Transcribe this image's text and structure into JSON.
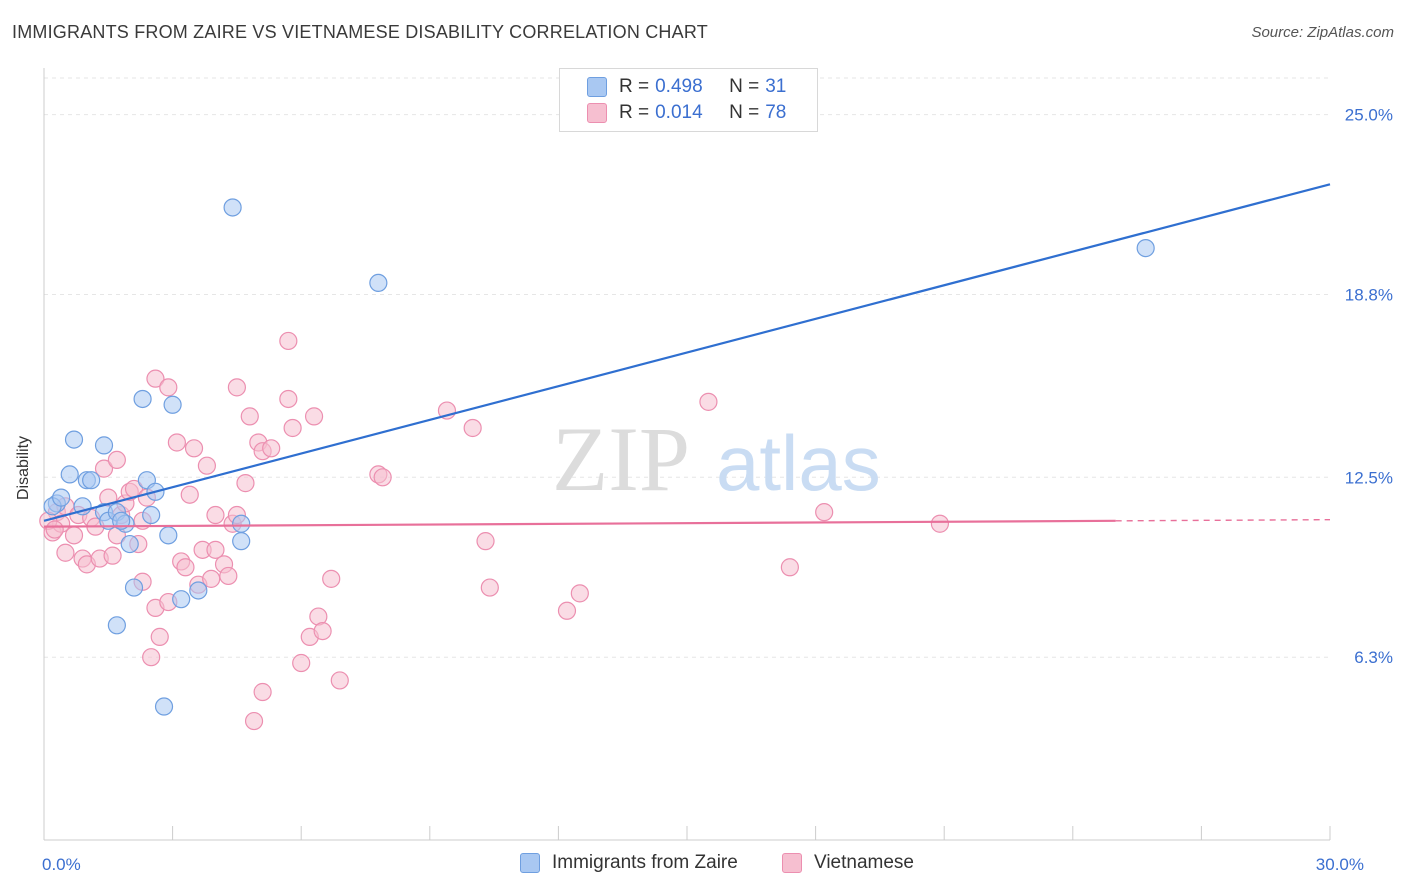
{
  "header": {
    "title": "IMMIGRANTS FROM ZAIRE VS VIETNAMESE DISABILITY CORRELATION CHART",
    "source": "Source: ZipAtlas.com"
  },
  "watermark": {
    "part1": "ZIP",
    "part2": "atlas"
  },
  "legend": {
    "r_label": "R =",
    "n_label": "N =",
    "series": [
      {
        "r": "0.498",
        "n": "31"
      },
      {
        "r": "0.014",
        "n": "78"
      }
    ]
  },
  "colors": {
    "blue_fill": "#a9c8f2",
    "blue_stroke": "#6f9fe0",
    "blue_line": "#2f6fd0",
    "pink_fill": "#f6bfd0",
    "pink_stroke": "#ec8fb0",
    "pink_line": "#e8709a",
    "tick_label": "#3b6fd0"
  },
  "chart_data": {
    "type": "scatter",
    "title": "IMMIGRANTS FROM ZAIRE VS VIETNAMESE DISABILITY CORRELATION CHART",
    "xlabel": "",
    "ylabel": "Disability",
    "xlim": [
      0,
      30
    ],
    "ylim": [
      0,
      26.4
    ],
    "x_tick_labels": [
      {
        "value": 0,
        "label": "0.0%"
      },
      {
        "value": 30,
        "label": "30.0%"
      }
    ],
    "y_tick_labels": [
      {
        "value": 6.3,
        "label": "6.3%"
      },
      {
        "value": 12.5,
        "label": "12.5%"
      },
      {
        "value": 18.8,
        "label": "18.8%"
      },
      {
        "value": 25.0,
        "label": "25.0%"
      }
    ],
    "grid": true,
    "legend_position": "top-center",
    "series": [
      {
        "name": "Immigrants from Zaire",
        "color": "#a9c8f2",
        "trend": {
          "x": [
            0.0,
            30.0
          ],
          "y": [
            11.0,
            22.6
          ]
        },
        "points": [
          [
            0.3,
            11.6
          ],
          [
            0.2,
            11.5
          ],
          [
            0.6,
            12.6
          ],
          [
            0.7,
            13.8
          ],
          [
            0.9,
            11.5
          ],
          [
            1.0,
            12.4
          ],
          [
            1.1,
            12.4
          ],
          [
            1.4,
            11.3
          ],
          [
            1.4,
            13.6
          ],
          [
            1.5,
            11.0
          ],
          [
            1.7,
            11.3
          ],
          [
            1.9,
            10.9
          ],
          [
            2.0,
            10.2
          ],
          [
            2.1,
            8.7
          ],
          [
            2.3,
            15.2
          ],
          [
            2.4,
            12.4
          ],
          [
            2.5,
            11.2
          ],
          [
            2.6,
            12.0
          ],
          [
            2.8,
            4.6
          ],
          [
            2.9,
            10.5
          ],
          [
            3.0,
            15.0
          ],
          [
            3.2,
            8.3
          ],
          [
            3.6,
            8.6
          ],
          [
            4.4,
            21.8
          ],
          [
            4.6,
            10.9
          ],
          [
            4.6,
            10.3
          ],
          [
            7.8,
            19.2
          ],
          [
            1.7,
            7.4
          ],
          [
            0.4,
            11.8
          ],
          [
            1.8,
            11.0
          ],
          [
            25.7,
            20.4
          ]
        ]
      },
      {
        "name": "Vietnamese",
        "color": "#f6bfd0",
        "trend": {
          "x": [
            0.0,
            25.0
          ],
          "y": [
            10.8,
            11.0
          ]
        },
        "points": [
          [
            0.2,
            10.6
          ],
          [
            0.3,
            11.3
          ],
          [
            0.4,
            10.9
          ],
          [
            0.5,
            11.5
          ],
          [
            0.5,
            9.9
          ],
          [
            0.7,
            10.5
          ],
          [
            0.8,
            11.2
          ],
          [
            0.9,
            9.7
          ],
          [
            1.0,
            9.5
          ],
          [
            1.1,
            11.1
          ],
          [
            1.2,
            10.8
          ],
          [
            1.3,
            9.7
          ],
          [
            1.4,
            12.8
          ],
          [
            1.5,
            11.8
          ],
          [
            1.6,
            9.8
          ],
          [
            1.7,
            10.5
          ],
          [
            1.7,
            13.1
          ],
          [
            1.8,
            11.2
          ],
          [
            1.9,
            11.6
          ],
          [
            2.0,
            12.0
          ],
          [
            2.1,
            12.1
          ],
          [
            2.2,
            10.2
          ],
          [
            2.3,
            11.0
          ],
          [
            2.3,
            8.9
          ],
          [
            2.4,
            11.8
          ],
          [
            2.5,
            6.3
          ],
          [
            2.6,
            8.0
          ],
          [
            2.6,
            15.9
          ],
          [
            2.7,
            7.0
          ],
          [
            2.9,
            15.6
          ],
          [
            2.9,
            8.2
          ],
          [
            3.1,
            13.7
          ],
          [
            3.2,
            9.6
          ],
          [
            3.3,
            9.4
          ],
          [
            3.4,
            11.9
          ],
          [
            3.5,
            13.5
          ],
          [
            3.6,
            8.8
          ],
          [
            3.7,
            10.0
          ],
          [
            3.8,
            12.9
          ],
          [
            3.9,
            9.0
          ],
          [
            4.0,
            10.0
          ],
          [
            4.0,
            11.2
          ],
          [
            4.2,
            9.5
          ],
          [
            4.3,
            9.1
          ],
          [
            4.4,
            10.9
          ],
          [
            4.5,
            11.2
          ],
          [
            4.5,
            15.6
          ],
          [
            4.7,
            12.3
          ],
          [
            4.8,
            14.6
          ],
          [
            4.9,
            4.1
          ],
          [
            5.0,
            13.7
          ],
          [
            5.1,
            13.4
          ],
          [
            5.1,
            5.1
          ],
          [
            5.3,
            13.5
          ],
          [
            5.7,
            17.2
          ],
          [
            5.7,
            15.2
          ],
          [
            5.8,
            14.2
          ],
          [
            6.0,
            6.1
          ],
          [
            6.2,
            7.0
          ],
          [
            6.3,
            14.6
          ],
          [
            6.4,
            7.7
          ],
          [
            6.5,
            7.2
          ],
          [
            6.7,
            9.0
          ],
          [
            6.9,
            5.5
          ],
          [
            7.8,
            12.6
          ],
          [
            7.9,
            12.5
          ],
          [
            9.4,
            14.8
          ],
          [
            10.0,
            14.2
          ],
          [
            10.3,
            10.3
          ],
          [
            10.4,
            8.7
          ],
          [
            12.2,
            7.9
          ],
          [
            12.5,
            8.5
          ],
          [
            15.5,
            15.1
          ],
          [
            17.4,
            9.4
          ],
          [
            18.2,
            11.3
          ],
          [
            20.9,
            10.9
          ],
          [
            0.1,
            11.0
          ],
          [
            0.25,
            10.7
          ]
        ]
      }
    ]
  },
  "bottom_legend": [
    {
      "label": "Immigrants from Zaire"
    },
    {
      "label": "Vietnamese"
    }
  ]
}
